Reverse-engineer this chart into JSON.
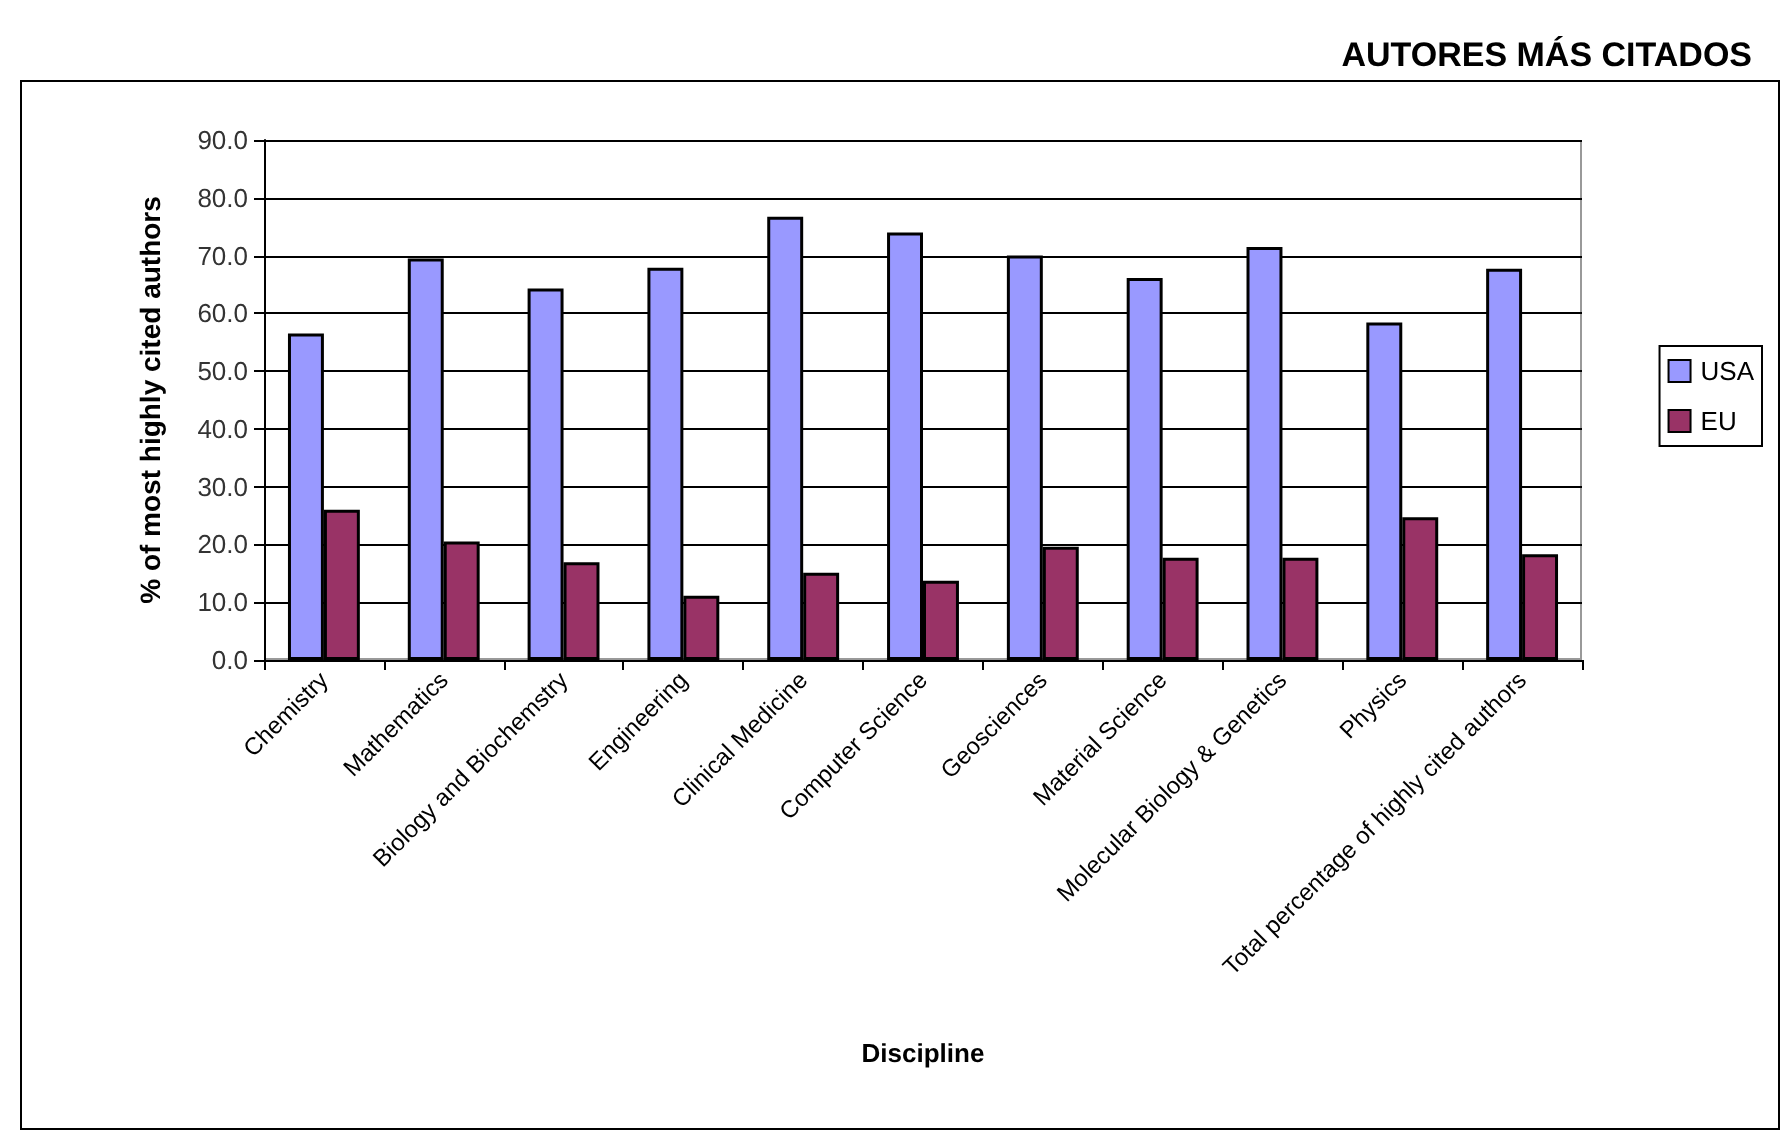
{
  "chart_data": {
    "type": "bar",
    "title": "AUTORES MÁS CITADOS",
    "xlabel": "Discipline",
    "ylabel": "% of most highly cited authors",
    "categories": [
      "Chemistry",
      "Mathematics",
      "Biology and Biochemstry",
      "Engineering",
      "Clinical Medicine",
      "Computer Science",
      "Geosciences",
      "Material Science",
      "Molecular Biology & Genetics",
      "Physics",
      "Total percentage of highly cited authors"
    ],
    "series": [
      {
        "name": "USA",
        "color": "#9999ff",
        "values": [
          56.5,
          69.5,
          64.3,
          67.9,
          76.7,
          74.0,
          70.0,
          66.1,
          71.5,
          58.4,
          67.7
        ]
      },
      {
        "name": "EU",
        "color": "#993366",
        "values": [
          26.0,
          20.5,
          16.9,
          11.1,
          15.1,
          13.7,
          19.6,
          17.7,
          17.7,
          24.7,
          18.3
        ]
      }
    ],
    "ylim": [
      0,
      90
    ],
    "yticks": [
      {
        "value": 0,
        "label": "0.0"
      },
      {
        "value": 10,
        "label": "10.0"
      },
      {
        "value": 20,
        "label": "20.0"
      },
      {
        "value": 30,
        "label": "30.0"
      },
      {
        "value": 40,
        "label": "40.0"
      },
      {
        "value": 50,
        "label": "50.0"
      },
      {
        "value": 60,
        "label": "60.0"
      },
      {
        "value": 70,
        "label": "70.0"
      },
      {
        "value": 80,
        "label": "80.0"
      },
      {
        "value": 90,
        "label": "90.0"
      }
    ],
    "grid": "y",
    "legend": "right"
  }
}
